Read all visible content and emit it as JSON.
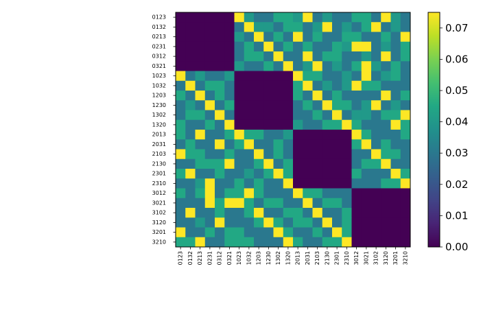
{
  "chart_data": {
    "type": "heatmap",
    "title": "",
    "xlabel": "",
    "ylabel": "",
    "colormap": "viridis",
    "labels": [
      "0123",
      "0132",
      "0213",
      "0231",
      "0312",
      "0321",
      "1023",
      "1032",
      "1203",
      "1230",
      "1302",
      "1320",
      "2013",
      "2031",
      "2103",
      "2130",
      "2301",
      "2310",
      "3012",
      "3021",
      "3102",
      "3120",
      "3201",
      "3210"
    ],
    "value_range": [
      0,
      0.075
    ],
    "colorbar": {
      "ticks": [
        0.0,
        0.01,
        0.02,
        0.03,
        0.04,
        0.05,
        0.06,
        0.07
      ],
      "tick_labels": [
        "0.00",
        "0.01",
        "0.02",
        "0.03",
        "0.04",
        "0.05",
        "0.06",
        "0.07"
      ]
    },
    "matrix": [
      [
        0,
        0,
        0,
        0,
        0,
        0,
        0.075,
        0.04,
        0.03,
        0.03,
        0.045,
        0.045,
        0.04,
        0.075,
        0.03,
        0.04,
        0.03,
        0.03,
        0.045,
        0.045,
        0.03,
        0.075,
        0.04,
        0.03
      ],
      [
        0,
        0,
        0,
        0,
        0,
        0,
        0.03,
        0.075,
        0.04,
        0.04,
        0.03,
        0.045,
        0.045,
        0.03,
        0.04,
        0.075,
        0.03,
        0.04,
        0.03,
        0.045,
        0.075,
        0.03,
        0.04,
        0.03
      ],
      [
        0,
        0,
        0,
        0,
        0,
        0,
        0.04,
        0.03,
        0.075,
        0.03,
        0.045,
        0.03,
        0.075,
        0.03,
        0.045,
        0.03,
        0.03,
        0.045,
        0.045,
        0.03,
        0.03,
        0.045,
        0.03,
        0.075
      ],
      [
        0,
        0,
        0,
        0,
        0,
        0,
        0.03,
        0.045,
        0.03,
        0.075,
        0.03,
        0.045,
        0.03,
        0.045,
        0.03,
        0.03,
        0.045,
        0.04,
        0.075,
        0.075,
        0.03,
        0.04,
        0.03,
        0.045
      ],
      [
        0,
        0,
        0,
        0,
        0,
        0,
        0.03,
        0.045,
        0.045,
        0.03,
        0.075,
        0.03,
        0.03,
        0.075,
        0.03,
        0.045,
        0.045,
        0.03,
        0.03,
        0.04,
        0.03,
        0.075,
        0.03,
        0.045
      ],
      [
        0,
        0,
        0,
        0,
        0,
        0,
        0.04,
        0.03,
        0.03,
        0.045,
        0.03,
        0.075,
        0.03,
        0.04,
        0.075,
        0.03,
        0.04,
        0.03,
        0.045,
        0.075,
        0.04,
        0.03,
        0.045,
        0.03
      ],
      [
        0.075,
        0.03,
        0.04,
        0.03,
        0.03,
        0.04,
        0,
        0,
        0,
        0,
        0,
        0,
        0.075,
        0.045,
        0.045,
        0.03,
        0.03,
        0.04,
        0.03,
        0.075,
        0.03,
        0.04,
        0.045,
        0.03
      ],
      [
        0.03,
        0.075,
        0.03,
        0.045,
        0.045,
        0.03,
        0,
        0,
        0,
        0,
        0,
        0,
        0.045,
        0.075,
        0.03,
        0.04,
        0.03,
        0.04,
        0.075,
        0.045,
        0.045,
        0.03,
        0.03,
        0.03
      ],
      [
        0.045,
        0.03,
        0.075,
        0.03,
        0.045,
        0.03,
        0,
        0,
        0,
        0,
        0,
        0,
        0.045,
        0.03,
        0.075,
        0.03,
        0.045,
        0.03,
        0.03,
        0.03,
        0.03,
        0.075,
        0.03,
        0.045
      ],
      [
        0.03,
        0.04,
        0.03,
        0.075,
        0.03,
        0.045,
        0,
        0,
        0,
        0,
        0,
        0,
        0.03,
        0.045,
        0.03,
        0.075,
        0.045,
        0.045,
        0.03,
        0.04,
        0.075,
        0.03,
        0.04,
        0.03
      ],
      [
        0.03,
        0.045,
        0.045,
        0.03,
        0.075,
        0.03,
        0,
        0,
        0,
        0,
        0,
        0,
        0.03,
        0.03,
        0.045,
        0.03,
        0.075,
        0.03,
        0.04,
        0.04,
        0.03,
        0.045,
        0.045,
        0.075
      ],
      [
        0.045,
        0.03,
        0.03,
        0.045,
        0.03,
        0.075,
        0,
        0,
        0,
        0,
        0,
        0,
        0.04,
        0.03,
        0.03,
        0.045,
        0.045,
        0.075,
        0.045,
        0.03,
        0.03,
        0.03,
        0.075,
        0.045
      ],
      [
        0.045,
        0.03,
        0.075,
        0.03,
        0.03,
        0.045,
        0.075,
        0.045,
        0.045,
        0.03,
        0.03,
        0.04,
        0,
        0,
        0,
        0,
        0,
        0,
        0.075,
        0.045,
        0.03,
        0.03,
        0.03,
        0.045
      ],
      [
        0.03,
        0.045,
        0.03,
        0.03,
        0.075,
        0.03,
        0.045,
        0.075,
        0.03,
        0.03,
        0.045,
        0.03,
        0,
        0,
        0,
        0,
        0,
        0,
        0.045,
        0.075,
        0.03,
        0.045,
        0.03,
        0.03
      ],
      [
        0.075,
        0.045,
        0.045,
        0.03,
        0.03,
        0.045,
        0.03,
        0.03,
        0.075,
        0.03,
        0.045,
        0.03,
        0,
        0,
        0,
        0,
        0,
        0,
        0.03,
        0.03,
        0.075,
        0.045,
        0.045,
        0.03
      ],
      [
        0.03,
        0.03,
        0.045,
        0.045,
        0.045,
        0.075,
        0.03,
        0.03,
        0.045,
        0.075,
        0.03,
        0.045,
        0,
        0,
        0,
        0,
        0,
        0,
        0.03,
        0.045,
        0.045,
        0.075,
        0.03,
        0.03
      ],
      [
        0.045,
        0.075,
        0.03,
        0.03,
        0.045,
        0.03,
        0.03,
        0.04,
        0.03,
        0.045,
        0.075,
        0.045,
        0,
        0,
        0,
        0,
        0,
        0,
        0.045,
        0.03,
        0.03,
        0.03,
        0.075,
        0.045
      ],
      [
        0.03,
        0.03,
        0.04,
        0.075,
        0.03,
        0.03,
        0.045,
        0.03,
        0.045,
        0.03,
        0.03,
        0.075,
        0,
        0,
        0,
        0,
        0,
        0,
        0.03,
        0.03,
        0.03,
        0.045,
        0.045,
        0.075
      ],
      [
        0.045,
        0.03,
        0.045,
        0.075,
        0.03,
        0.045,
        0.045,
        0.075,
        0.045,
        0.03,
        0.03,
        0.03,
        0.075,
        0.045,
        0.045,
        0.03,
        0.03,
        0.03,
        0,
        0,
        0,
        0,
        0,
        0
      ],
      [
        0.03,
        0.03,
        0.03,
        0.075,
        0.045,
        0.075,
        0.075,
        0.045,
        0.03,
        0.045,
        0.045,
        0.03,
        0.03,
        0.075,
        0.03,
        0.045,
        0.045,
        0.03,
        0,
        0,
        0,
        0,
        0,
        0
      ],
      [
        0.03,
        0.075,
        0.03,
        0.03,
        0.045,
        0.03,
        0.03,
        0.045,
        0.075,
        0.03,
        0.03,
        0.045,
        0.045,
        0.03,
        0.075,
        0.03,
        0.03,
        0.045,
        0,
        0,
        0,
        0,
        0,
        0
      ],
      [
        0.03,
        0.03,
        0.04,
        0.03,
        0.075,
        0.03,
        0.03,
        0.03,
        0.045,
        0.075,
        0.045,
        0.03,
        0.045,
        0.045,
        0.03,
        0.075,
        0.03,
        0.045,
        0,
        0,
        0,
        0,
        0,
        0
      ],
      [
        0.075,
        0.03,
        0.03,
        0.045,
        0.03,
        0.045,
        0.045,
        0.03,
        0.03,
        0.03,
        0.075,
        0.045,
        0.03,
        0.03,
        0.045,
        0.03,
        0.075,
        0.045,
        0,
        0,
        0,
        0,
        0,
        0
      ],
      [
        0.045,
        0.045,
        0.075,
        0.03,
        0.03,
        0.045,
        0.045,
        0.045,
        0.03,
        0.03,
        0.03,
        0.075,
        0.045,
        0.03,
        0.03,
        0.045,
        0.045,
        0.075,
        0,
        0,
        0,
        0,
        0,
        0
      ]
    ]
  }
}
